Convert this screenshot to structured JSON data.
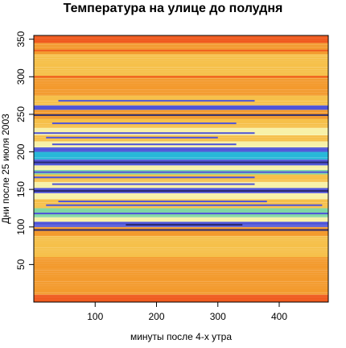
{
  "chart_data": {
    "type": "heatmap",
    "title": "Температура на улице до полудня",
    "xlabel": "минуты после 4-х утра",
    "ylabel": "Дни после 25 июля 2003",
    "x_ticks": [
      100,
      200,
      300,
      400
    ],
    "y_ticks": [
      50,
      100,
      150,
      200,
      250,
      300,
      350
    ],
    "xlim": [
      0,
      480
    ],
    "ylim": [
      0,
      355
    ],
    "grid": false,
    "legend": "none",
    "colors": {
      "hot": "#f05a1e",
      "warm": "#f39a2d",
      "mild": "#f6c04a",
      "pale": "#f7f1a8",
      "cool": "#7fd6a4",
      "cyan": "#27b8d8",
      "blue": "#4f55d8",
      "dark": "#2a2a70",
      "frame": "#000000"
    },
    "bands": [
      {
        "y": [
          0,
          10
        ],
        "level": "hot"
      },
      {
        "y": [
          10,
          45
        ],
        "level": "warm"
      },
      {
        "y": [
          45,
          60
        ],
        "level": "warm"
      },
      {
        "y": [
          60,
          88
        ],
        "level": "mild"
      },
      {
        "y": [
          88,
          100
        ],
        "level": "warm"
      },
      {
        "y": [
          100,
          107
        ],
        "level": "blue"
      },
      {
        "y": [
          107,
          113
        ],
        "level": "pale"
      },
      {
        "y": [
          113,
          125
        ],
        "level": "cool"
      },
      {
        "y": [
          125,
          137
        ],
        "level": "mild"
      },
      {
        "y": [
          137,
          145
        ],
        "level": "pale"
      },
      {
        "y": [
          145,
          152
        ],
        "level": "blue"
      },
      {
        "y": [
          152,
          160
        ],
        "level": "pale"
      },
      {
        "y": [
          160,
          170
        ],
        "level": "mild"
      },
      {
        "y": [
          170,
          176
        ],
        "level": "cool"
      },
      {
        "y": [
          176,
          182
        ],
        "level": "pale"
      },
      {
        "y": [
          182,
          190
        ],
        "level": "blue"
      },
      {
        "y": [
          190,
          200
        ],
        "level": "cyan"
      },
      {
        "y": [
          200,
          206
        ],
        "level": "blue"
      },
      {
        "y": [
          206,
          214
        ],
        "level": "pale"
      },
      {
        "y": [
          214,
          222
        ],
        "level": "mild"
      },
      {
        "y": [
          222,
          232
        ],
        "level": "pale"
      },
      {
        "y": [
          232,
          244
        ],
        "level": "mild"
      },
      {
        "y": [
          244,
          256
        ],
        "level": "warm"
      },
      {
        "y": [
          256,
          262
        ],
        "level": "blue"
      },
      {
        "y": [
          262,
          275
        ],
        "level": "mild"
      },
      {
        "y": [
          275,
          300
        ],
        "level": "warm"
      },
      {
        "y": [
          300,
          330
        ],
        "level": "mild"
      },
      {
        "y": [
          330,
          345
        ],
        "level": "warm"
      },
      {
        "y": [
          345,
          355
        ],
        "level": "hot"
      }
    ],
    "streaks": [
      {
        "y": 103,
        "x": [
          150,
          340
        ],
        "level": "dark"
      },
      {
        "y": 118,
        "x": [
          0,
          480
        ],
        "level": "blue"
      },
      {
        "y": 129,
        "x": [
          20,
          470
        ],
        "level": "blue"
      },
      {
        "y": 134,
        "x": [
          40,
          380
        ],
        "level": "blue"
      },
      {
        "y": 148,
        "x": [
          0,
          480
        ],
        "level": "dark"
      },
      {
        "y": 157,
        "x": [
          30,
          360
        ],
        "level": "blue"
      },
      {
        "y": 166,
        "x": [
          0,
          360
        ],
        "level": "blue"
      },
      {
        "y": 173,
        "x": [
          0,
          480
        ],
        "level": "blue"
      },
      {
        "y": 186,
        "x": [
          0,
          480
        ],
        "level": "dark"
      },
      {
        "y": 195,
        "x": [
          60,
          320
        ],
        "level": "cyan"
      },
      {
        "y": 203,
        "x": [
          0,
          480
        ],
        "level": "blue"
      },
      {
        "y": 210,
        "x": [
          30,
          330
        ],
        "level": "blue"
      },
      {
        "y": 219,
        "x": [
          20,
          300
        ],
        "level": "blue"
      },
      {
        "y": 225,
        "x": [
          0,
          360
        ],
        "level": "blue"
      },
      {
        "y": 238,
        "x": [
          30,
          330
        ],
        "level": "blue"
      },
      {
        "y": 249,
        "x": [
          0,
          480
        ],
        "level": "dark"
      },
      {
        "y": 259,
        "x": [
          0,
          480
        ],
        "level": "blue"
      },
      {
        "y": 268,
        "x": [
          40,
          360
        ],
        "level": "blue"
      },
      {
        "y": 96,
        "x": [
          0,
          480
        ],
        "level": "dark"
      },
      {
        "y": 300,
        "x": [
          0,
          480
        ],
        "level": "hot"
      },
      {
        "y": 335,
        "x": [
          0,
          480
        ],
        "level": "hot"
      }
    ]
  }
}
